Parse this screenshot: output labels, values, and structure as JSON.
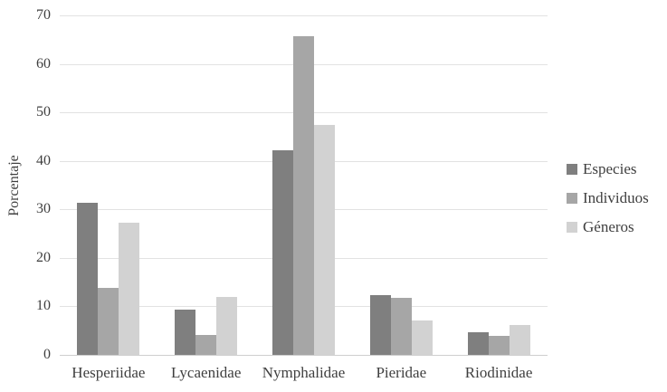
{
  "chart_data": {
    "type": "bar",
    "title": "",
    "xlabel": "",
    "ylabel": "Porcentaje",
    "ylim": [
      0,
      70
    ],
    "ytick_step": 10,
    "yticks": [
      0,
      10,
      20,
      30,
      40,
      50,
      60,
      70
    ],
    "grid": true,
    "legend_position": "right",
    "categories": [
      "Hesperiidae",
      "Lycaenidae",
      "Nymphalidae",
      "Pieridae",
      "Riodinidae"
    ],
    "series": [
      {
        "name": "Especies",
        "color": "#7f7f7f",
        "values": [
          31.3,
          9.4,
          42.2,
          12.4,
          4.6
        ]
      },
      {
        "name": "Individuos",
        "color": "#a6a6a6",
        "values": [
          13.9,
          4.2,
          65.8,
          11.8,
          4.0
        ]
      },
      {
        "name": "Géneros",
        "color": "#d2d2d2",
        "values": [
          27.3,
          12.0,
          47.4,
          7.1,
          6.1
        ]
      }
    ]
  },
  "colors": {
    "background": "#ffffff",
    "gridline": "#e2e2e2",
    "axis_line": "#cfcfcf",
    "text": "#3f3f3f"
  }
}
